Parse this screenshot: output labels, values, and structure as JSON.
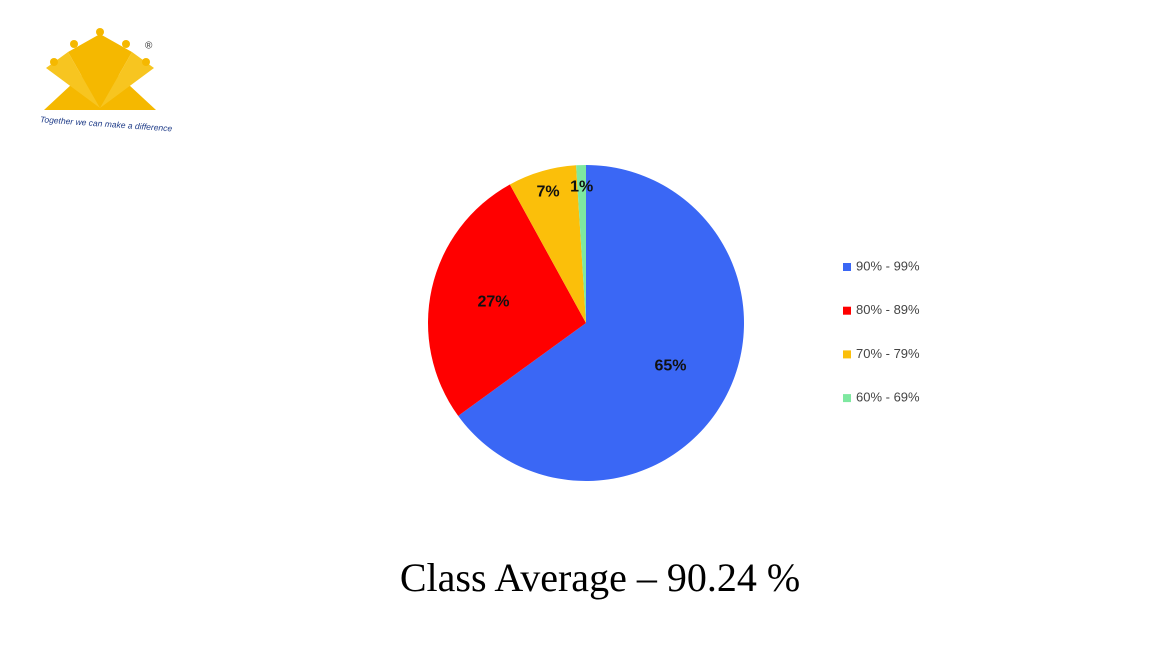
{
  "logo": {
    "tagline": "Together we can make a difference",
    "mark": "®"
  },
  "chart_data": {
    "type": "pie",
    "categories": [
      "90% - 99%",
      "80% - 89%",
      "70% - 79%",
      "60% - 69%"
    ],
    "values": [
      65,
      27,
      7,
      1
    ],
    "value_labels": [
      "65%",
      "27%",
      "7%",
      "1%"
    ],
    "colors": [
      "#3a67f5",
      "#ff0000",
      "#fbbf0a",
      "#7ee8a0"
    ],
    "legend": "right",
    "caption": "Class Average – 90.24 %"
  }
}
